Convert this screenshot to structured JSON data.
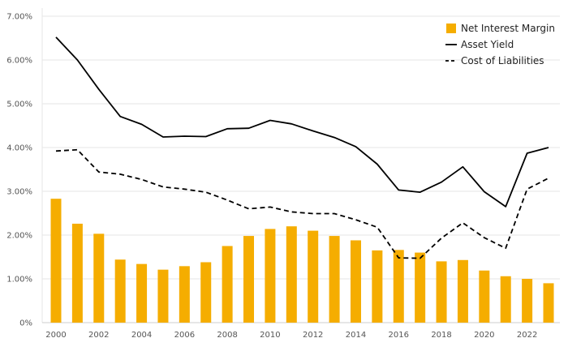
{
  "chart_data": {
    "type": "bar",
    "title": "",
    "xlabel": "",
    "ylabel": "",
    "ylim": [
      0,
      7
    ],
    "yticks": [
      "0%",
      "1.00%",
      "2.00%",
      "3.00%",
      "4.00%",
      "5.00%",
      "6.00%",
      "7.00%"
    ],
    "xticks": [
      "2000",
      "2002",
      "2004",
      "2006",
      "2008",
      "2010",
      "2012",
      "2014",
      "2016",
      "2018",
      "2020",
      "2022"
    ],
    "grid": true,
    "legend_position": "top-right",
    "categories": [
      2000,
      2001,
      2002,
      2003,
      2004,
      2005,
      2006,
      2007,
      2008,
      2009,
      2010,
      2011,
      2012,
      2013,
      2014,
      2015,
      2016,
      2017,
      2018,
      2019,
      2020,
      2021,
      2022,
      2023
    ],
    "series": [
      {
        "name": "Net Interest Margin",
        "kind": "bar",
        "color": "#f5ad00",
        "values": [
          2.83,
          2.26,
          2.03,
          1.44,
          1.34,
          1.21,
          1.29,
          1.38,
          1.75,
          1.98,
          2.14,
          2.2,
          2.1,
          1.98,
          1.88,
          1.65,
          1.66,
          1.6,
          1.4,
          1.43,
          1.19,
          1.06,
          1.0,
          0.9
        ]
      },
      {
        "name": "Asset Yield",
        "kind": "line",
        "color": "#000000",
        "dash": "solid",
        "values": [
          6.52,
          6.0,
          5.33,
          4.71,
          4.53,
          4.24,
          4.26,
          4.25,
          4.43,
          4.44,
          4.62,
          4.54,
          4.38,
          4.23,
          4.02,
          3.62,
          3.03,
          2.98,
          3.21,
          3.56,
          2.99,
          2.65,
          3.87,
          4.0
        ]
      },
      {
        "name": "Cost of Liabilities",
        "kind": "line",
        "color": "#000000",
        "dash": "dashed",
        "values": [
          3.92,
          3.95,
          3.44,
          3.39,
          3.27,
          3.1,
          3.05,
          2.98,
          2.8,
          2.6,
          2.64,
          2.53,
          2.49,
          2.49,
          2.35,
          2.18,
          1.48,
          1.47,
          1.93,
          2.28,
          1.94,
          1.7,
          3.05,
          3.3
        ]
      }
    ]
  }
}
